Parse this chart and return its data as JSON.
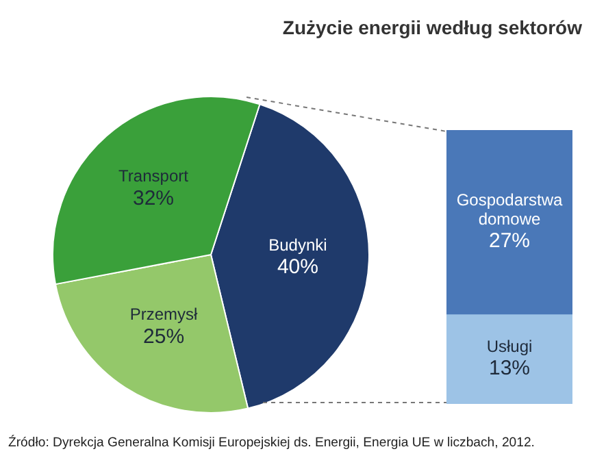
{
  "chart_data": [
    {
      "type": "pie",
      "title": "Zużycie energii według sektorów",
      "categories": [
        "Budynki",
        "Przemysł",
        "Transport"
      ],
      "values": [
        40,
        25,
        32
      ],
      "value_labels": [
        "40%",
        "25%",
        "32%"
      ],
      "colors": [
        "#1f3a6b",
        "#94c86a",
        "#3aa03a"
      ],
      "legend": false,
      "annotations": [
        "Źródło: Dyrekcja Generalna Komisji Europejskiej ds. Energii, Energia UE w liczbach, 2012."
      ]
    },
    {
      "type": "bar",
      "stacked": true,
      "categories": [
        null
      ],
      "tick_labels": false,
      "legend": false,
      "series": [
        {
          "name": "Usługi",
          "color": "#9dc3e6",
          "values": [
            13
          ],
          "value_labels": [
            "13%"
          ]
        },
        {
          "name": "Gospodarstwa domowe",
          "color": "#4a78b8",
          "values": [
            27
          ],
          "value_labels": [
            "27%"
          ]
        }
      ]
    }
  ]
}
